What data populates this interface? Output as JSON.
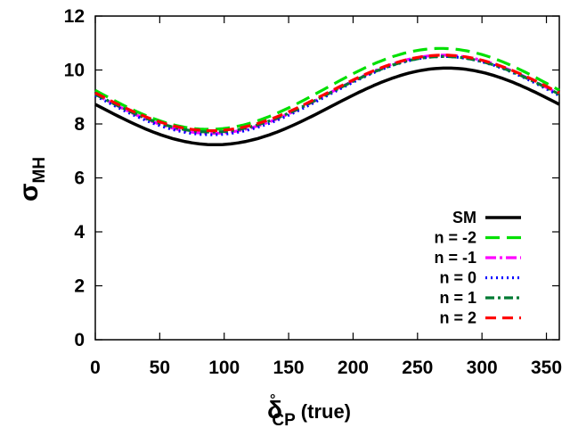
{
  "chart_data": {
    "type": "line",
    "title": "",
    "xlabel": {
      "symbol": "δ",
      "superscript": "°",
      "subscript": "CP",
      "suffix": "(true)"
    },
    "ylabel": {
      "symbol": "σ",
      "subscript": "MH"
    },
    "xlim": [
      0,
      360
    ],
    "ylim": [
      0,
      12
    ],
    "xticks": [
      0,
      50,
      100,
      150,
      200,
      250,
      300,
      350
    ],
    "yticks": [
      0,
      2,
      4,
      6,
      8,
      10,
      12
    ],
    "grid": false,
    "legend_position": "bottom-right",
    "series": [
      {
        "name": "SM",
        "color": "#000000",
        "dash": "solid",
        "mid": 8.65,
        "amp": 1.42,
        "min_at": 93
      },
      {
        "name": "n = -2",
        "color": "#00e000",
        "dash": "dash",
        "mid": 9.3,
        "amp": 1.5,
        "min_at": 88
      },
      {
        "name": "n = -1",
        "color": "#ff00ff",
        "dash": "dashdot",
        "mid": 9.1,
        "amp": 1.45,
        "min_at": 90
      },
      {
        "name": "n = 0",
        "color": "#0000ff",
        "dash": "dot",
        "mid": 9.05,
        "amp": 1.45,
        "min_at": 90
      },
      {
        "name": "n = 1",
        "color": "#007a33",
        "dash": "dashdot2",
        "mid": 9.1,
        "amp": 1.4,
        "min_at": 90
      },
      {
        "name": "n = 2",
        "color": "#ff0000",
        "dash": "dash2",
        "mid": 9.15,
        "amp": 1.4,
        "min_at": 90
      }
    ]
  }
}
